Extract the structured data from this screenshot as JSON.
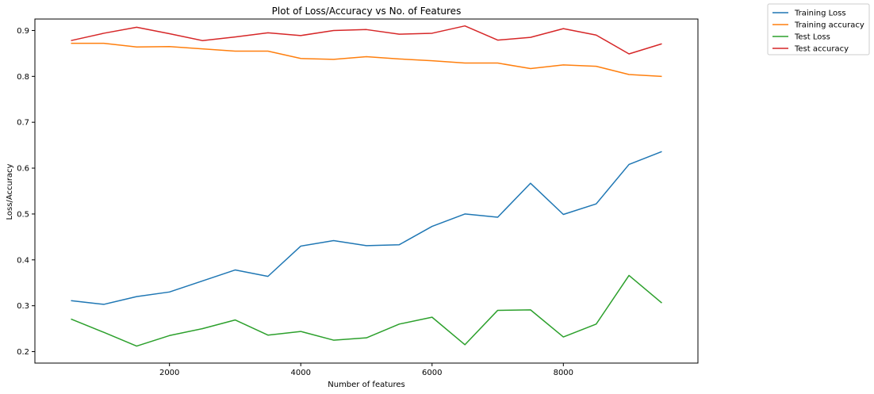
{
  "chart_data": {
    "type": "line",
    "title": "Plot of Loss/Accuracy vs No. of Features",
    "xlabel": "Number of features",
    "ylabel": "Loss/Accuracy",
    "xlim": [
      -50,
      10050
    ],
    "ylim": [
      0.175,
      0.925
    ],
    "xticks": [
      2000,
      4000,
      6000,
      8000
    ],
    "xtick_labels": [
      "2000",
      "4000",
      "6000",
      "8000"
    ],
    "yticks": [
      0.2,
      0.3,
      0.4,
      0.5,
      0.6,
      0.7,
      0.8,
      0.9
    ],
    "ytick_labels": [
      "0.2",
      "0.3",
      "0.4",
      "0.5",
      "0.6",
      "0.7",
      "0.8",
      "0.9"
    ],
    "grid": false,
    "legend_position": "outside-top-right",
    "x": [
      500,
      1000,
      1500,
      2000,
      2500,
      3000,
      3500,
      4000,
      4500,
      5000,
      5500,
      6000,
      6500,
      7000,
      7500,
      8000,
      8500,
      9000,
      9500
    ],
    "series": [
      {
        "name": "Training Loss",
        "color": "#1f77b4",
        "values": [
          0.311,
          0.303,
          0.32,
          0.33,
          0.354,
          0.378,
          0.364,
          0.43,
          0.442,
          0.431,
          0.433,
          0.473,
          0.5,
          0.493,
          0.567,
          0.499,
          0.522,
          0.608,
          0.636
        ]
      },
      {
        "name": "Training accuracy",
        "color": "#ff7f0e",
        "values": [
          0.872,
          0.872,
          0.864,
          0.865,
          0.86,
          0.855,
          0.855,
          0.839,
          0.837,
          0.843,
          0.838,
          0.834,
          0.829,
          0.829,
          0.817,
          0.825,
          0.822,
          0.804,
          0.8
        ]
      },
      {
        "name": "Test Loss",
        "color": "#2ca02c",
        "values": [
          0.271,
          0.242,
          0.212,
          0.235,
          0.25,
          0.269,
          0.236,
          0.244,
          0.225,
          0.23,
          0.26,
          0.275,
          0.215,
          0.29,
          0.291,
          0.232,
          0.26,
          0.366,
          0.306
        ]
      },
      {
        "name": "Test accuracy",
        "color": "#d62728",
        "values": [
          0.878,
          0.894,
          0.907,
          0.893,
          0.878,
          0.886,
          0.895,
          0.889,
          0.9,
          0.902,
          0.892,
          0.894,
          0.91,
          0.879,
          0.885,
          0.904,
          0.89,
          0.849,
          0.871
        ]
      }
    ]
  }
}
